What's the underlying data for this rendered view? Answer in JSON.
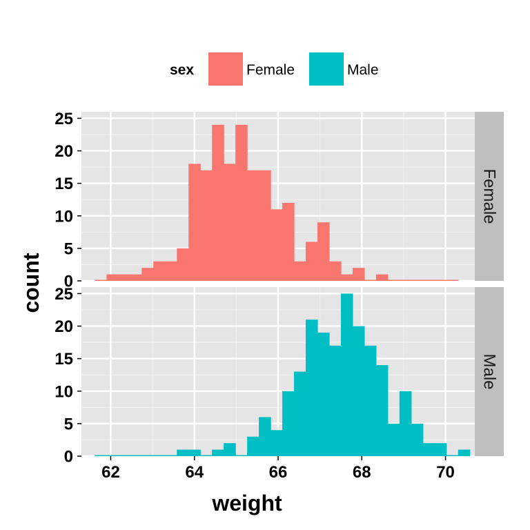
{
  "chart_data": {
    "type": "bar",
    "subtype": "faceted-histogram",
    "xlabel": "weight",
    "ylabel": "count",
    "xlim": [
      61.3,
      70.7
    ],
    "ylim": [
      0,
      26
    ],
    "xticks": [
      "62",
      "64",
      "66",
      "68",
      "70"
    ],
    "yticks": [
      "0",
      "5",
      "10",
      "15",
      "20",
      "25"
    ],
    "bin_width": 0.28,
    "bin_start": 61.62,
    "legend": {
      "title": "sex",
      "position": "top",
      "entries": [
        {
          "label": "Female",
          "color": "#F8766D"
        },
        {
          "label": "Male",
          "color": "#00BFC4"
        }
      ]
    },
    "grid": true,
    "series": [
      {
        "name": "Female",
        "strip_label": "Female",
        "color": "#F8766D",
        "values": [
          0,
          1,
          1,
          1,
          2,
          3,
          3,
          5,
          18,
          17,
          24,
          18,
          24,
          17,
          17,
          11,
          12,
          3,
          6,
          9,
          3,
          1,
          2,
          0,
          1,
          0,
          0,
          0,
          0,
          0,
          0
        ]
      },
      {
        "name": "Male",
        "strip_label": "Male",
        "color": "#00BFC4",
        "values": [
          0,
          0,
          0,
          0,
          0,
          0,
          0,
          1,
          1,
          0,
          1,
          2,
          0,
          3,
          6,
          4,
          10,
          13,
          21,
          19,
          17,
          25,
          20,
          17,
          14,
          5,
          10,
          5,
          2,
          2,
          0,
          1
        ]
      }
    ]
  }
}
